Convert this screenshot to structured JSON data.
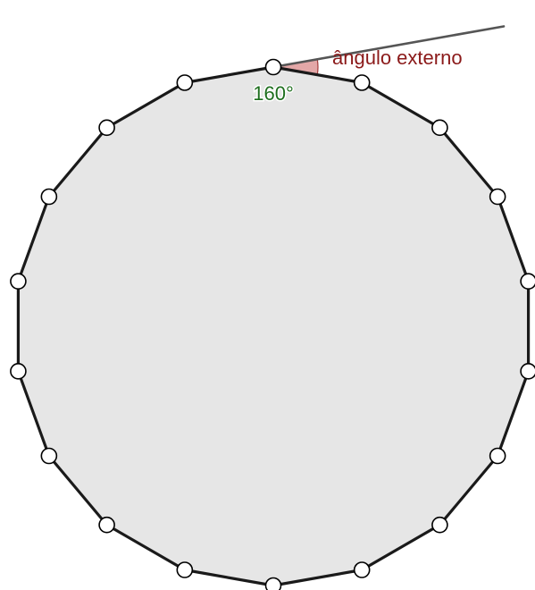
{
  "diagram": {
    "polygon_sides": 18,
    "interior_angle_label": "160°",
    "exterior_angle_label": "ângulo externo",
    "colors": {
      "polygon_fill": "#e6e6e6",
      "polygon_stroke": "#1a1a1a",
      "vertex_fill": "#ffffff",
      "vertex_stroke": "#000000",
      "interior_arc": "#2e8b2e",
      "interior_fill": "#c8dcc8",
      "exterior_fill": "#d98a8a",
      "exterior_text": "#8b1a1a",
      "extension_line": "#555555",
      "interior_text": "#1e6e1e"
    }
  }
}
